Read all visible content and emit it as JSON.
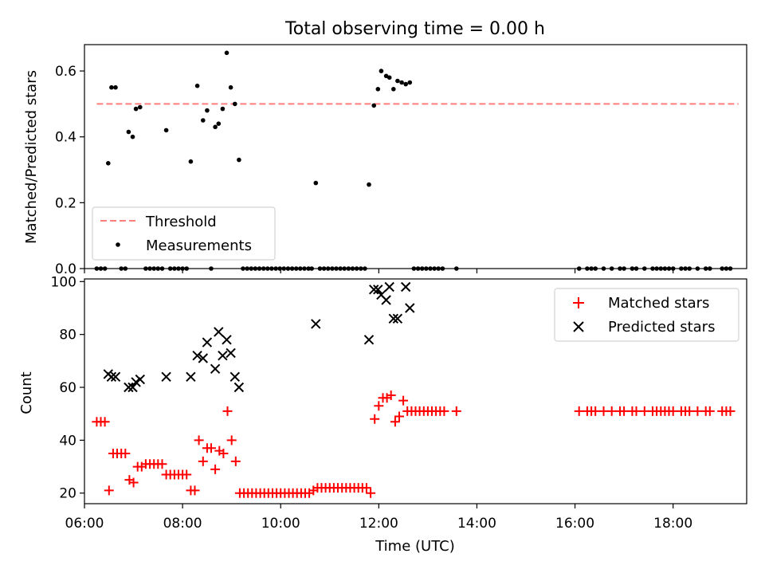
{
  "chart_data": [
    {
      "type": "scatter",
      "title": "Total observing time = 0.00 h",
      "xlabel": "",
      "ylabel": "Matched/Predicted stars",
      "xlim": [
        "06:00",
        "19:30"
      ],
      "ylim": [
        0,
        0.68
      ],
      "yticks": [
        0.0,
        0.2,
        0.4,
        0.6
      ],
      "ytick_labels": [
        "0.0",
        "0.2",
        "0.4",
        "0.6"
      ],
      "legend_position": "lower-left",
      "threshold": {
        "name": "Threshold",
        "value": 0.5,
        "x_range": [
          "06:15",
          "19:20"
        ],
        "color": "#ff7f7f"
      },
      "series": [
        {
          "name": "Measurements",
          "color": "#000000",
          "marker": "dot",
          "points": [
            [
              "06:29",
              0.32
            ],
            [
              "06:33",
              0.55
            ],
            [
              "06:38",
              0.55
            ],
            [
              "06:54",
              0.415
            ],
            [
              "06:59",
              0.4
            ],
            [
              "07:03",
              0.485
            ],
            [
              "07:08",
              0.49
            ],
            [
              "07:40",
              0.42
            ],
            [
              "08:10",
              0.325
            ],
            [
              "08:18",
              0.555
            ],
            [
              "08:25",
              0.45
            ],
            [
              "08:30",
              0.48
            ],
            [
              "08:40",
              0.43
            ],
            [
              "08:44",
              0.44
            ],
            [
              "08:49",
              0.485
            ],
            [
              "08:54",
              0.655
            ],
            [
              "08:59",
              0.55
            ],
            [
              "09:04",
              0.5
            ],
            [
              "09:09",
              0.33
            ],
            [
              "10:43",
              0.26
            ],
            [
              "11:48",
              0.255
            ],
            [
              "11:54",
              0.495
            ],
            [
              "11:59",
              0.545
            ],
            [
              "12:03",
              0.6
            ],
            [
              "12:09",
              0.585
            ],
            [
              "12:13",
              0.58
            ],
            [
              "12:18",
              0.545
            ],
            [
              "12:23",
              0.57
            ],
            [
              "12:28",
              0.565
            ],
            [
              "12:33",
              0.56
            ],
            [
              "12:38",
              0.565
            ],
            [
              "06:15",
              0
            ],
            [
              "06:20",
              0
            ],
            [
              "06:25",
              0
            ],
            [
              "06:45",
              0
            ],
            [
              "06:50",
              0
            ],
            [
              "07:15",
              0
            ],
            [
              "07:20",
              0
            ],
            [
              "07:25",
              0
            ],
            [
              "07:30",
              0
            ],
            [
              "07:35",
              0
            ],
            [
              "07:45",
              0
            ],
            [
              "07:50",
              0
            ],
            [
              "07:55",
              0
            ],
            [
              "08:00",
              0
            ],
            [
              "08:05",
              0
            ],
            [
              "08:35",
              0
            ],
            [
              "09:14",
              0
            ],
            [
              "09:19",
              0
            ],
            [
              "09:24",
              0
            ],
            [
              "09:29",
              0
            ],
            [
              "09:34",
              0
            ],
            [
              "09:39",
              0
            ],
            [
              "09:44",
              0
            ],
            [
              "09:49",
              0
            ],
            [
              "09:54",
              0
            ],
            [
              "09:59",
              0
            ],
            [
              "10:04",
              0
            ],
            [
              "10:09",
              0
            ],
            [
              "10:14",
              0
            ],
            [
              "10:19",
              0
            ],
            [
              "10:24",
              0
            ],
            [
              "10:29",
              0
            ],
            [
              "10:34",
              0
            ],
            [
              "10:38",
              0
            ],
            [
              "10:48",
              0
            ],
            [
              "10:53",
              0
            ],
            [
              "10:58",
              0
            ],
            [
              "11:03",
              0
            ],
            [
              "11:08",
              0
            ],
            [
              "11:13",
              0
            ],
            [
              "11:18",
              0
            ],
            [
              "11:23",
              0
            ],
            [
              "11:28",
              0
            ],
            [
              "11:33",
              0
            ],
            [
              "11:38",
              0
            ],
            [
              "11:43",
              0
            ],
            [
              "12:43",
              0
            ],
            [
              "12:48",
              0
            ],
            [
              "12:53",
              0
            ],
            [
              "12:58",
              0
            ],
            [
              "13:03",
              0
            ],
            [
              "13:08",
              0
            ],
            [
              "13:13",
              0
            ],
            [
              "13:18",
              0
            ],
            [
              "13:35",
              0
            ],
            [
              "16:05",
              0
            ],
            [
              "16:15",
              0
            ],
            [
              "16:20",
              0
            ],
            [
              "16:25",
              0
            ],
            [
              "16:35",
              0
            ],
            [
              "16:45",
              0
            ],
            [
              "16:55",
              0
            ],
            [
              "17:00",
              0
            ],
            [
              "17:10",
              0
            ],
            [
              "17:15",
              0
            ],
            [
              "17:25",
              0
            ],
            [
              "17:35",
              0
            ],
            [
              "17:40",
              0
            ],
            [
              "17:45",
              0
            ],
            [
              "17:50",
              0
            ],
            [
              "17:55",
              0
            ],
            [
              "18:00",
              0
            ],
            [
              "18:10",
              0
            ],
            [
              "18:15",
              0
            ],
            [
              "18:20",
              0
            ],
            [
              "18:30",
              0
            ],
            [
              "18:40",
              0
            ],
            [
              "18:45",
              0
            ],
            [
              "19:00",
              0
            ],
            [
              "19:05",
              0
            ],
            [
              "19:10",
              0
            ]
          ]
        }
      ]
    },
    {
      "type": "scatter",
      "title": "",
      "xlabel": "Time (UTC)",
      "ylabel": "Count",
      "xlim": [
        "06:00",
        "19:30"
      ],
      "ylim": [
        16,
        101
      ],
      "xticks": [
        "06:00",
        "08:00",
        "10:00",
        "12:00",
        "14:00",
        "16:00",
        "18:00"
      ],
      "yticks": [
        20,
        40,
        60,
        80,
        100
      ],
      "legend_position": "top-right",
      "series": [
        {
          "name": "Matched stars",
          "color": "#ff0000",
          "marker": "plus",
          "points": [
            [
              "06:15",
              47
            ],
            [
              "06:20",
              47
            ],
            [
              "06:25",
              47
            ],
            [
              "06:30",
              21
            ],
            [
              "06:35",
              35
            ],
            [
              "06:40",
              35
            ],
            [
              "06:45",
              35
            ],
            [
              "06:50",
              35
            ],
            [
              "06:55",
              25
            ],
            [
              "07:00",
              24
            ],
            [
              "07:05",
              30
            ],
            [
              "07:10",
              30
            ],
            [
              "07:15",
              31
            ],
            [
              "07:20",
              31
            ],
            [
              "07:25",
              31
            ],
            [
              "07:30",
              31
            ],
            [
              "07:35",
              31
            ],
            [
              "07:40",
              27
            ],
            [
              "07:45",
              27
            ],
            [
              "07:50",
              27
            ],
            [
              "07:55",
              27
            ],
            [
              "08:00",
              27
            ],
            [
              "08:05",
              27
            ],
            [
              "08:10",
              21
            ],
            [
              "08:15",
              21
            ],
            [
              "08:20",
              40
            ],
            [
              "08:25",
              32
            ],
            [
              "08:30",
              37
            ],
            [
              "08:35",
              37
            ],
            [
              "08:40",
              29
            ],
            [
              "08:45",
              36
            ],
            [
              "08:50",
              35
            ],
            [
              "08:55",
              51
            ],
            [
              "09:00",
              40
            ],
            [
              "09:05",
              32
            ],
            [
              "09:10",
              20
            ],
            [
              "09:15",
              20
            ],
            [
              "09:20",
              20
            ],
            [
              "09:25",
              20
            ],
            [
              "09:30",
              20
            ],
            [
              "09:35",
              20
            ],
            [
              "09:40",
              20
            ],
            [
              "09:45",
              20
            ],
            [
              "09:50",
              20
            ],
            [
              "09:55",
              20
            ],
            [
              "10:00",
              20
            ],
            [
              "10:05",
              20
            ],
            [
              "10:10",
              20
            ],
            [
              "10:15",
              20
            ],
            [
              "10:20",
              20
            ],
            [
              "10:25",
              20
            ],
            [
              "10:30",
              20
            ],
            [
              "10:35",
              20
            ],
            [
              "10:40",
              21
            ],
            [
              "10:45",
              22
            ],
            [
              "10:50",
              22
            ],
            [
              "10:55",
              22
            ],
            [
              "11:00",
              22
            ],
            [
              "11:05",
              22
            ],
            [
              "11:10",
              22
            ],
            [
              "11:15",
              22
            ],
            [
              "11:20",
              22
            ],
            [
              "11:25",
              22
            ],
            [
              "11:30",
              22
            ],
            [
              "11:35",
              22
            ],
            [
              "11:40",
              22
            ],
            [
              "11:45",
              22
            ],
            [
              "11:50",
              20
            ],
            [
              "11:55",
              48
            ],
            [
              "12:00",
              53
            ],
            [
              "12:05",
              56
            ],
            [
              "12:10",
              56
            ],
            [
              "12:15",
              57
            ],
            [
              "12:20",
              47
            ],
            [
              "12:25",
              49
            ],
            [
              "12:30",
              55
            ],
            [
              "12:35",
              51
            ],
            [
              "12:40",
              51
            ],
            [
              "12:45",
              51
            ],
            [
              "12:50",
              51
            ],
            [
              "12:55",
              51
            ],
            [
              "13:00",
              51
            ],
            [
              "13:05",
              51
            ],
            [
              "13:10",
              51
            ],
            [
              "13:15",
              51
            ],
            [
              "13:20",
              51
            ],
            [
              "13:35",
              51
            ],
            [
              "16:05",
              51
            ],
            [
              "16:15",
              51
            ],
            [
              "16:20",
              51
            ],
            [
              "16:25",
              51
            ],
            [
              "16:35",
              51
            ],
            [
              "16:45",
              51
            ],
            [
              "16:55",
              51
            ],
            [
              "17:00",
              51
            ],
            [
              "17:10",
              51
            ],
            [
              "17:15",
              51
            ],
            [
              "17:25",
              51
            ],
            [
              "17:35",
              51
            ],
            [
              "17:40",
              51
            ],
            [
              "17:45",
              51
            ],
            [
              "17:50",
              51
            ],
            [
              "17:55",
              51
            ],
            [
              "18:00",
              51
            ],
            [
              "18:10",
              51
            ],
            [
              "18:15",
              51
            ],
            [
              "18:20",
              51
            ],
            [
              "18:30",
              51
            ],
            [
              "18:40",
              51
            ],
            [
              "18:45",
              51
            ],
            [
              "19:00",
              51
            ],
            [
              "19:05",
              51
            ],
            [
              "19:10",
              51
            ]
          ]
        },
        {
          "name": "Predicted stars",
          "color": "#000000",
          "marker": "x",
          "points": [
            [
              "06:29",
              65
            ],
            [
              "06:33",
              64
            ],
            [
              "06:38",
              64
            ],
            [
              "06:54",
              60
            ],
            [
              "06:59",
              60
            ],
            [
              "07:03",
              62
            ],
            [
              "07:08",
              63
            ],
            [
              "07:40",
              64
            ],
            [
              "08:10",
              64
            ],
            [
              "08:18",
              72
            ],
            [
              "08:25",
              71
            ],
            [
              "08:30",
              77
            ],
            [
              "08:40",
              67
            ],
            [
              "08:44",
              81
            ],
            [
              "08:49",
              72
            ],
            [
              "08:54",
              78
            ],
            [
              "08:59",
              73
            ],
            [
              "09:04",
              64
            ],
            [
              "09:09",
              60
            ],
            [
              "10:43",
              84
            ],
            [
              "11:48",
              78
            ],
            [
              "11:54",
              97
            ],
            [
              "11:59",
              97
            ],
            [
              "12:03",
              95
            ],
            [
              "12:09",
              93
            ],
            [
              "12:13",
              98
            ],
            [
              "12:18",
              86
            ],
            [
              "12:23",
              86
            ],
            [
              "12:33",
              98
            ],
            [
              "12:38",
              90
            ]
          ]
        }
      ]
    }
  ]
}
